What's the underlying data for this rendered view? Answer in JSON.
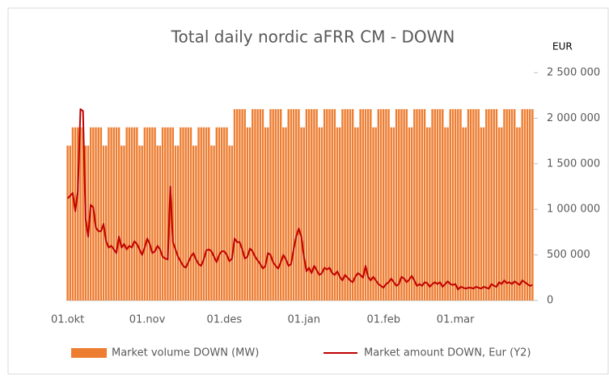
{
  "chart_data": {
    "type": "bar_line",
    "title": "Total daily nordic aFRR CM - DOWN",
    "y2_label": "EUR",
    "categories": [
      "01.okt",
      null,
      null,
      null,
      null,
      null,
      null,
      null,
      null,
      null,
      null,
      null,
      null,
      null,
      null,
      null,
      null,
      null,
      null,
      null,
      null,
      null,
      null,
      null,
      null,
      null,
      null,
      null,
      null,
      null,
      null,
      "01.nov",
      null,
      null,
      null,
      null,
      null,
      null,
      null,
      null,
      null,
      null,
      null,
      null,
      null,
      null,
      null,
      null,
      null,
      null,
      null,
      null,
      null,
      null,
      null,
      null,
      null,
      null,
      null,
      null,
      null,
      "01.des",
      null,
      null,
      null,
      null,
      null,
      null,
      null,
      null,
      null,
      null,
      null,
      null,
      null,
      null,
      null,
      null,
      null,
      null,
      null,
      null,
      null,
      null,
      null,
      null,
      null,
      null,
      null,
      null,
      null,
      null,
      "01.jan",
      null,
      null,
      null,
      null,
      null,
      null,
      null,
      null,
      null,
      null,
      null,
      null,
      null,
      null,
      null,
      null,
      null,
      null,
      null,
      null,
      null,
      null,
      null,
      null,
      null,
      null,
      null,
      null,
      null,
      null,
      "01.feb",
      null,
      null,
      null,
      null,
      null,
      null,
      null,
      null,
      null,
      null,
      null,
      null,
      null,
      null,
      null,
      null,
      null,
      null,
      null,
      null,
      null,
      null,
      null,
      null,
      null,
      null,
      null,
      "01.mar",
      null,
      null,
      null,
      null,
      null,
      null,
      null,
      null,
      null,
      null,
      null,
      null,
      null,
      null,
      null,
      null,
      null,
      null,
      null,
      null,
      null,
      null,
      null,
      null,
      null,
      null,
      null,
      null,
      null,
      null
    ],
    "ylim": [
      0,
      2500
    ],
    "y2lim": [
      0,
      2500000
    ],
    "y2ticks": [
      0,
      {
        "value": 500000,
        "label": "500 000"
      },
      {
        "value": 1000000,
        "label": "1 000 000"
      },
      {
        "value": 1500000,
        "label": "1 500 000"
      },
      {
        "value": 2000000,
        "label": "2 000 000"
      },
      {
        "value": 2500000,
        "label": "2 500 000"
      }
    ],
    "series": [
      {
        "name": "Market volume DOWN (MW)",
        "type": "bar",
        "color": "#ed7d31",
        "values": [
          1700,
          1700,
          1900,
          1900,
          1900,
          1900,
          1900,
          1700,
          1700,
          1900,
          1900,
          1900,
          1900,
          1900,
          1700,
          1700,
          1900,
          1900,
          1900,
          1900,
          1900,
          1700,
          1700,
          1900,
          1900,
          1900,
          1900,
          1900,
          1700,
          1700,
          1900,
          1900,
          1900,
          1900,
          1900,
          1700,
          1700,
          1900,
          1900,
          1900,
          1900,
          1900,
          1700,
          1700,
          1900,
          1900,
          1900,
          1900,
          1900,
          1700,
          1700,
          1900,
          1900,
          1900,
          1900,
          1900,
          1700,
          1700,
          1900,
          1900,
          1900,
          1900,
          1900,
          1700,
          1700,
          2100,
          2100,
          2100,
          2100,
          2100,
          1900,
          1900,
          2100,
          2100,
          2100,
          2100,
          2100,
          1900,
          1900,
          2100,
          2100,
          2100,
          2100,
          2100,
          1900,
          1900,
          2100,
          2100,
          2100,
          2100,
          2100,
          1900,
          1900,
          2100,
          2100,
          2100,
          2100,
          2100,
          1900,
          1900,
          2100,
          2100,
          2100,
          2100,
          2100,
          1900,
          1900,
          2100,
          2100,
          2100,
          2100,
          2100,
          1900,
          1900,
          2100,
          2100,
          2100,
          2100,
          2100,
          1900,
          1900,
          2100,
          2100,
          2100,
          2100,
          2100,
          1900,
          1900,
          2100,
          2100,
          2100,
          2100,
          2100,
          1900,
          1900,
          2100,
          2100,
          2100,
          2100,
          2100,
          1900,
          1900,
          2100,
          2100,
          2100,
          2100,
          2100,
          1900,
          1900,
          2100,
          2100,
          2100,
          2100,
          2100,
          1900,
          1900,
          2100,
          2100,
          2100,
          2100,
          2100,
          1900,
          1900,
          2100,
          2100,
          2100,
          2100,
          2100,
          1900,
          1900,
          2100,
          2100,
          2100,
          2100,
          2100,
          1900,
          1900,
          2100,
          2100,
          2100,
          2100,
          2100
        ]
      },
      {
        "name": "Market amount DOWN, Eur (Y2)",
        "type": "line",
        "axis": "y2",
        "color": "#c00000",
        "values": [
          1120000,
          1150000,
          1180000,
          980000,
          1200000,
          2100000,
          2080000,
          900000,
          700000,
          1050000,
          1020000,
          800000,
          760000,
          760000,
          840000,
          650000,
          580000,
          600000,
          560000,
          520000,
          700000,
          580000,
          620000,
          560000,
          600000,
          580000,
          650000,
          620000,
          560000,
          500000,
          580000,
          680000,
          620000,
          520000,
          540000,
          600000,
          560000,
          480000,
          460000,
          450000,
          1250000,
          640000,
          560000,
          480000,
          430000,
          380000,
          360000,
          420000,
          480000,
          520000,
          450000,
          400000,
          380000,
          450000,
          550000,
          560000,
          540000,
          480000,
          420000,
          500000,
          540000,
          540000,
          500000,
          430000,
          460000,
          680000,
          640000,
          640000,
          560000,
          460000,
          480000,
          570000,
          540000,
          480000,
          440000,
          400000,
          350000,
          380000,
          520000,
          500000,
          420000,
          380000,
          350000,
          420000,
          500000,
          450000,
          380000,
          400000,
          560000,
          700000,
          790000,
          700000,
          480000,
          320000,
          360000,
          300000,
          380000,
          330000,
          280000,
          300000,
          360000,
          340000,
          360000,
          300000,
          280000,
          320000,
          260000,
          220000,
          280000,
          250000,
          220000,
          200000,
          260000,
          300000,
          280000,
          250000,
          380000,
          260000,
          220000,
          260000,
          220000,
          180000,
          160000,
          140000,
          180000,
          200000,
          240000,
          200000,
          160000,
          180000,
          260000,
          240000,
          200000,
          230000,
          270000,
          220000,
          160000,
          180000,
          160000,
          200000,
          190000,
          150000,
          180000,
          200000,
          180000,
          200000,
          150000,
          180000,
          210000,
          180000,
          170000,
          180000,
          120000,
          150000,
          140000,
          130000,
          140000,
          140000,
          130000,
          150000,
          140000,
          130000,
          150000,
          140000,
          130000,
          180000,
          160000,
          150000,
          200000,
          180000,
          220000,
          190000,
          200000,
          180000,
          210000,
          190000,
          170000,
          220000,
          200000,
          180000,
          160000,
          170000
        ]
      }
    ]
  }
}
